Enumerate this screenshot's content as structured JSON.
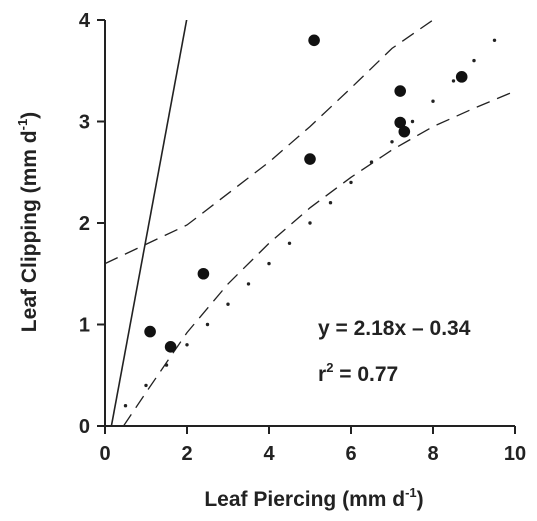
{
  "chart_data": {
    "type": "scatter",
    "xlabel": "Leaf Piercing (mm d",
    "xlabel_sup": "-1",
    "xlabel_end": ")",
    "ylabel": "Leaf Clipping  (mm  d",
    "ylabel_sup": "-1",
    "ylabel_end": ")",
    "xlim": [
      0,
      10
    ],
    "ylim": [
      0,
      4
    ],
    "xticks": [
      0,
      2,
      4,
      6,
      8,
      10
    ],
    "yticks": [
      0,
      1,
      2,
      3,
      4
    ],
    "xtick_labels": [
      "0",
      "2",
      "4",
      "6",
      "8",
      "10"
    ],
    "ytick_labels": [
      "0",
      "1",
      "2",
      "3",
      "4"
    ],
    "grid": false,
    "series": [
      {
        "kind": "points",
        "x": [
          1.1,
          1.6,
          2.4,
          5.0,
          5.1,
          7.2,
          7.2,
          7.3,
          8.7
        ],
        "y": [
          0.93,
          0.78,
          1.5,
          2.63,
          3.8,
          3.3,
          2.99,
          2.9,
          3.44
        ]
      },
      {
        "kind": "regression-line",
        "slope": 2.18,
        "intercept": -0.34
      },
      {
        "kind": "confidence-band",
        "upper": {
          "x": [
            0,
            2,
            4,
            5,
            6,
            7,
            8
          ],
          "y": [
            1.6,
            1.98,
            2.6,
            2.95,
            3.33,
            3.72,
            4.0
          ]
        },
        "lower": {
          "x": [
            0.45,
            1,
            2,
            3,
            4,
            5,
            6,
            7,
            8,
            9,
            10
          ],
          "y": [
            0.0,
            0.33,
            0.92,
            1.4,
            1.8,
            2.15,
            2.45,
            2.72,
            2.95,
            3.13,
            3.3
          ]
        }
      },
      {
        "kind": "dotted-line",
        "x": [
          0.5,
          1.0,
          1.5,
          2.0,
          2.5,
          3.0,
          3.5,
          4.0,
          4.5,
          5.0,
          5.5,
          6.0,
          6.5,
          7.0,
          7.5,
          8.0,
          8.5,
          9.0,
          9.5
        ],
        "y": [
          0.2,
          0.4,
          0.6,
          0.8,
          1.0,
          1.2,
          1.4,
          1.6,
          1.8,
          2.0,
          2.2,
          2.4,
          2.6,
          2.8,
          3.0,
          3.2,
          3.4,
          3.6,
          3.8
        ]
      }
    ],
    "annotations": {
      "equation": "y  =  2.18x  –  0.34",
      "r2_label": "r",
      "r2_sup": "2",
      "r2_value": " = 0.77"
    }
  }
}
